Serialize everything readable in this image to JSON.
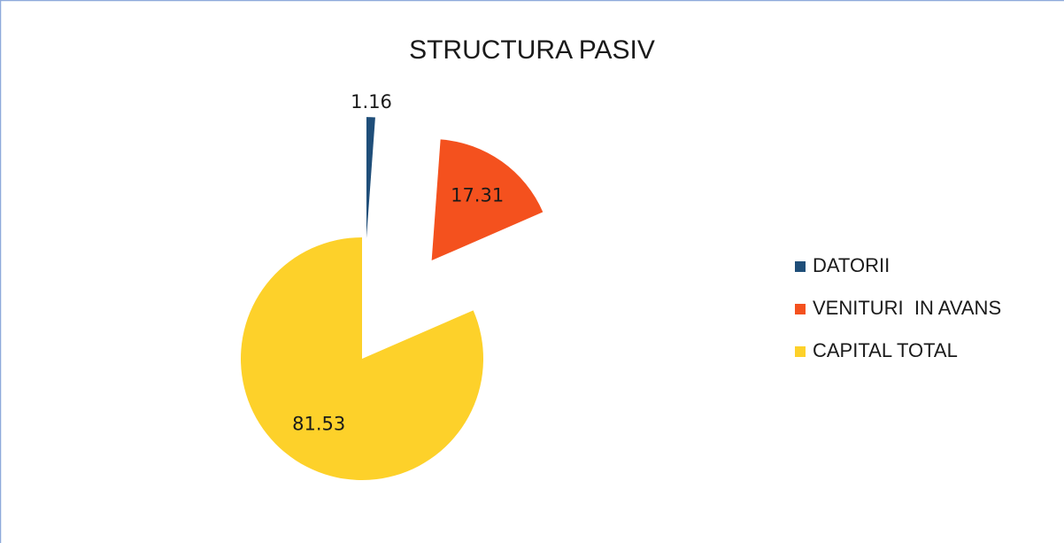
{
  "chart_data": {
    "type": "pie",
    "title": "STRUCTURA PASIV",
    "categories": [
      "DATORII",
      "VENITURI  IN AVANS",
      "CAPITAL TOTAL"
    ],
    "values": [
      1.16,
      17.31,
      81.53
    ],
    "colors": [
      "#1f4e79",
      "#f4511e",
      "#fdd12a"
    ],
    "exploded": [
      true,
      true,
      false
    ],
    "legend": "right"
  }
}
